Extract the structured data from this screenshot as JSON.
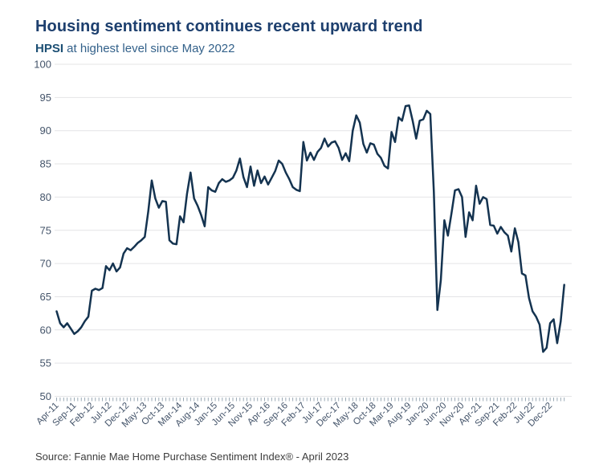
{
  "header": {
    "title": "Housing sentiment continues recent upward trend",
    "subtitle_bold": "HPSI",
    "subtitle_rest": " at highest level since May 2022"
  },
  "footer": {
    "source": "Source: Fannie Mae Home Purchase Sentiment Index® - April 2023"
  },
  "colors": {
    "title": "#1d3f6e",
    "subtitle_bold": "#1c4f74",
    "subtitle": "#33618a",
    "line": "#143350",
    "grid": "#e4e4e6",
    "axis_label": "#44546a",
    "tick_mark": "#8fa0ad",
    "source_text": "#3d3d3d",
    "background": "#ffffff"
  },
  "chart_data": {
    "type": "line",
    "title": "Housing sentiment continues recent upward trend",
    "subtitle": "HPSI at highest level since May 2022",
    "series_name": "Fannie Mae Home Purchase Sentiment Index (HPSI)",
    "x_start": "Apr-2011",
    "x_end": "Apr-2023",
    "frequency": "monthly",
    "xlabel": "",
    "ylabel": "",
    "ylim": [
      50,
      100
    ],
    "y_ticks": [
      100,
      95,
      90,
      85,
      80,
      75,
      70,
      65,
      60,
      55,
      50
    ],
    "grid": "horizontal",
    "legend": "none",
    "x_tick_labels": [
      "Apr-11",
      "Sep-11",
      "Feb-12",
      "Jul-12",
      "Dec-12",
      "May-13",
      "Oct-13",
      "Mar-14",
      "Aug-14",
      "Jan-15",
      "Jun-15",
      "Nov-15",
      "Apr-16",
      "Sep-16",
      "Feb-17",
      "Jul-17",
      "Dec-17",
      "May-18",
      "Oct-18",
      "Mar-19",
      "Aug-19",
      "Jan-20",
      "Jun-20",
      "Nov-20",
      "Apr-21",
      "Sep-21",
      "Feb-22",
      "Jul-22",
      "Dec-22"
    ],
    "x_label_every_n_months": 5,
    "values": [
      62.8,
      61.0,
      60.4,
      61.0,
      60.2,
      59.4,
      59.8,
      60.4,
      61.3,
      62.0,
      65.9,
      66.2,
      66.0,
      66.3,
      69.6,
      69.0,
      70.0,
      68.8,
      69.4,
      71.5,
      72.3,
      72.0,
      72.5,
      73.1,
      73.5,
      74.0,
      77.8,
      82.5,
      79.8,
      78.4,
      79.4,
      79.3,
      73.5,
      73.0,
      72.9,
      77.1,
      76.2,
      80.5,
      83.7,
      79.8,
      78.7,
      77.3,
      75.6,
      81.5,
      81.0,
      80.8,
      82.1,
      82.7,
      82.3,
      82.5,
      82.9,
      84.0,
      85.8,
      83.0,
      81.5,
      84.6,
      81.7,
      84.0,
      82.1,
      83.1,
      81.9,
      82.9,
      83.9,
      85.5,
      85.0,
      83.7,
      82.7,
      81.5,
      81.1,
      80.9,
      88.3,
      85.5,
      86.7,
      85.6,
      86.8,
      87.4,
      88.8,
      87.6,
      88.2,
      88.4,
      87.4,
      85.6,
      86.6,
      85.4,
      90.0,
      92.3,
      91.2,
      88.0,
      86.7,
      88.1,
      87.9,
      86.5,
      85.9,
      84.7,
      84.3,
      89.8,
      88.3,
      92.0,
      91.5,
      93.7,
      93.8,
      91.5,
      88.8,
      91.5,
      91.7,
      93.0,
      92.5,
      80.8,
      63.0,
      67.5,
      76.5,
      74.2,
      77.5,
      81.0,
      81.2,
      80.0,
      74.0,
      77.7,
      76.5,
      81.7,
      79.0,
      80.0,
      79.7,
      75.8,
      75.7,
      74.5,
      75.5,
      74.7,
      74.2,
      71.8,
      75.3,
      73.2,
      68.5,
      68.2,
      64.8,
      62.8,
      62.0,
      60.8,
      56.7,
      57.3,
      61.0,
      61.6,
      58.0,
      61.3,
      66.8
    ]
  }
}
